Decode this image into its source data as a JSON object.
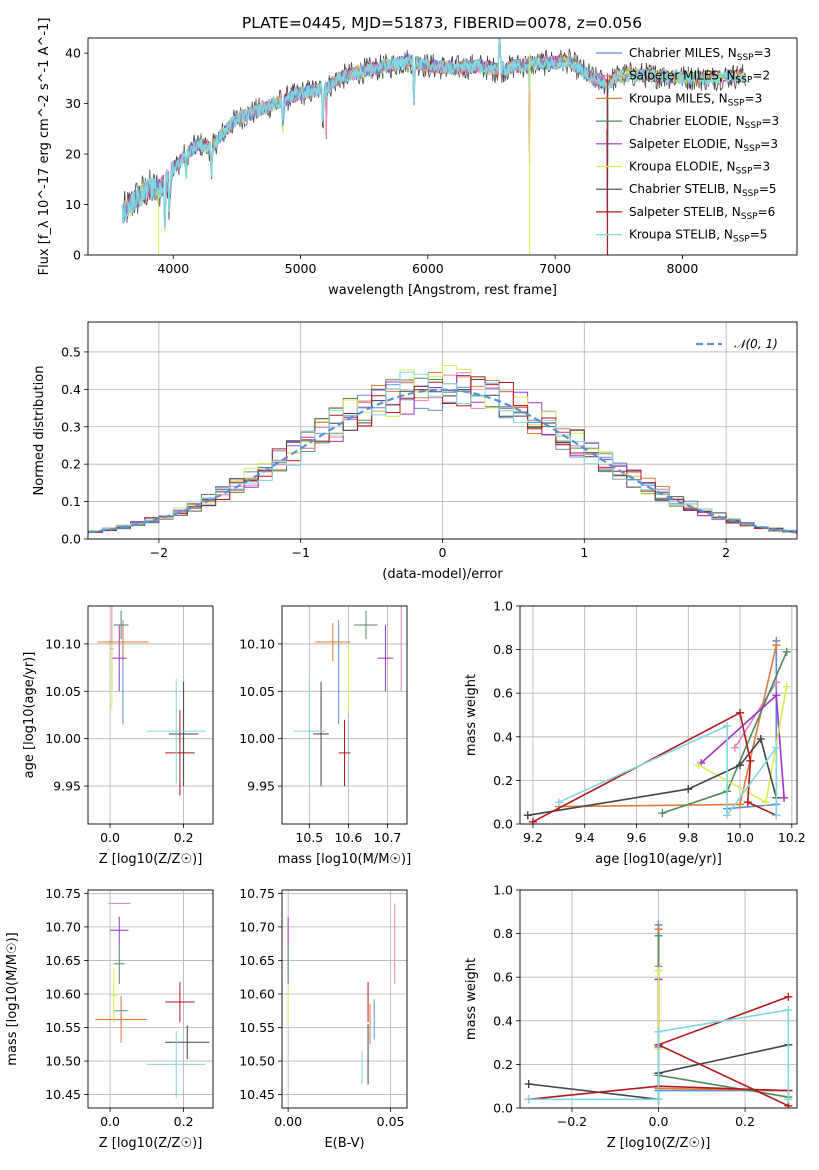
{
  "figure": {
    "title": "PLATE=0445, MJD=51873, FIBERID=0078, z=0.056"
  },
  "series_colors": {
    "Chabrier MILES": "#5b8fd6",
    "Salpeter MILES": "#e87fbf",
    "Kroupa MILES": "#e07b39",
    "Chabrier ELODIE": "#4f8a5b",
    "Salpeter ELODIE": "#9b35c7",
    "Kroupa ELODIE": "#d9ec58",
    "Chabrier STELIB": "#444444",
    "Salpeter STELIB": "#b1181c",
    "Kroupa STELIB": "#7fd8df"
  },
  "legend": [
    {
      "model": "Chabrier MILES",
      "nssp": "3"
    },
    {
      "model": "Salpeter MILES",
      "nssp": "2"
    },
    {
      "model": "Kroupa MILES",
      "nssp": "3"
    },
    {
      "model": "Chabrier ELODIE",
      "nssp": "3"
    },
    {
      "model": "Salpeter ELODIE",
      "nssp": "3"
    },
    {
      "model": "Kroupa ELODIE",
      "nssp": "3"
    },
    {
      "model": "Chabrier STELIB",
      "nssp": "5"
    },
    {
      "model": "Salpeter STELIB",
      "nssp": "6"
    },
    {
      "model": "Kroupa STELIB",
      "nssp": "5"
    }
  ],
  "chart_data": [
    {
      "id": "spectrum",
      "type": "line",
      "xlabel": "wavelength [Angstrom, rest frame]",
      "ylabel": "Flux [f_λ 10^-17 erg cm^-2 s^-1 A^-1]",
      "xlim": [
        3330,
        8900
      ],
      "ylim": [
        0,
        43
      ],
      "xticks": [
        4000,
        5000,
        6000,
        7000,
        8000
      ],
      "yticks": [
        0,
        10,
        20,
        30,
        40
      ],
      "grid": false,
      "legend_position": "right",
      "continuum": [
        [
          3600,
          8
        ],
        [
          3700,
          11
        ],
        [
          3800,
          13
        ],
        [
          3900,
          13
        ],
        [
          3950,
          15
        ],
        [
          4000,
          17
        ],
        [
          4100,
          20
        ],
        [
          4200,
          22
        ],
        [
          4300,
          21
        ],
        [
          4350,
          23
        ],
        [
          4500,
          27
        ],
        [
          4700,
          29
        ],
        [
          4900,
          31
        ],
        [
          5000,
          32
        ],
        [
          5200,
          33
        ],
        [
          5300,
          35
        ],
        [
          5500,
          36.5
        ],
        [
          5700,
          37.5
        ],
        [
          5850,
          38.5
        ],
        [
          6000,
          37.5
        ],
        [
          6200,
          37
        ],
        [
          6400,
          37.5
        ],
        [
          6560,
          36.5
        ],
        [
          6700,
          37.5
        ],
        [
          6900,
          38
        ],
        [
          7100,
          38.5
        ],
        [
          7300,
          35
        ],
        [
          7400,
          34
        ],
        [
          7500,
          35.5
        ],
        [
          7600,
          35.8
        ],
        [
          7800,
          35.5
        ],
        [
          8000,
          35.2
        ],
        [
          8200,
          35
        ],
        [
          8400,
          35.5
        ],
        [
          8500,
          35.3
        ]
      ],
      "features": [
        {
          "x": 3934,
          "depth": 10
        },
        {
          "x": 3969,
          "depth": 8
        },
        {
          "x": 4101,
          "depth": 5
        },
        {
          "x": 4300,
          "depth": 6
        },
        {
          "x": 4861,
          "depth": 6
        },
        {
          "x": 5175,
          "depth": 8
        },
        {
          "x": 5200,
          "depth": 20
        },
        {
          "x": 5890,
          "depth": 9
        },
        {
          "x": 6563,
          "depth": -9
        },
        {
          "x": 6800,
          "depth": 38
        },
        {
          "x": 7410,
          "depth": 34
        }
      ]
    },
    {
      "id": "residual_histogram",
      "type": "histogram",
      "xlabel": "(data-model)/error",
      "ylabel": "Normed distribution",
      "xlim": [
        -2.5,
        2.5
      ],
      "ylim": [
        0,
        0.58
      ],
      "xticks": [
        -2,
        -1,
        0,
        1,
        2
      ],
      "yticks": [
        0.0,
        0.1,
        0.2,
        0.3,
        0.4,
        0.5
      ],
      "grid": true,
      "reference_curve": "𝒩(0, 1)",
      "reference_color": "#5b8fd6",
      "bin_width": 0.1,
      "legend_position": "top-right"
    },
    {
      "id": "age_vs_Z",
      "type": "errorbar",
      "xlabel": "Z [log10(Z/Z☉)]",
      "ylabel": "age [log10(age/yr)]",
      "xlim": [
        -0.06,
        0.28
      ],
      "ylim": [
        9.91,
        10.14
      ],
      "xticks": [
        0.0,
        0.2
      ],
      "yticks": [
        9.95,
        10.0,
        10.05,
        10.1
      ],
      "grid": true,
      "points": [
        {
          "model": "Chabrier MILES",
          "x": 0.035,
          "xerr": 0.0,
          "y": 10.07,
          "yerr": 0.055
        },
        {
          "model": "Salpeter MILES",
          "x": 0.005,
          "xerr": 0.005,
          "y": 10.095,
          "yerr": 0.045
        },
        {
          "model": "Kroupa MILES",
          "x": 0.035,
          "xerr": 0.07,
          "y": 10.102,
          "yerr": 0.02
        },
        {
          "model": "Chabrier ELODIE",
          "x": 0.03,
          "xerr": 0.02,
          "y": 10.12,
          "yerr": 0.015
        },
        {
          "model": "Salpeter ELODIE",
          "x": 0.025,
          "xerr": 0.02,
          "y": 10.085,
          "yerr": 0.035
        },
        {
          "model": "Kroupa ELODIE",
          "x": 0.005,
          "xerr": 0.005,
          "y": 10.065,
          "yerr": 0.035
        },
        {
          "model": "Chabrier STELIB",
          "x": 0.2,
          "xerr": 0.04,
          "y": 10.005,
          "yerr": 0.055
        },
        {
          "model": "Salpeter STELIB",
          "x": 0.19,
          "xerr": 0.04,
          "y": 9.985,
          "yerr": 0.045
        },
        {
          "model": "Kroupa STELIB",
          "x": 0.18,
          "xerr": 0.08,
          "y": 10.008,
          "yerr": 0.055
        }
      ]
    },
    {
      "id": "age_vs_mass",
      "type": "errorbar",
      "xlabel": "mass [log10(M/M☉)]",
      "ylabel": "",
      "xlim": [
        10.43,
        10.75
      ],
      "ylim": [
        9.91,
        10.14
      ],
      "xticks": [
        10.5,
        10.6,
        10.7
      ],
      "yticks": [
        9.95,
        10.0,
        10.05,
        10.1
      ],
      "grid": true,
      "points": [
        {
          "model": "Chabrier MILES",
          "x": 10.575,
          "xerr": 0.0,
          "y": 10.07,
          "yerr": 0.055
        },
        {
          "model": "Salpeter MILES",
          "x": 10.735,
          "xerr": 0.0,
          "y": 10.095,
          "yerr": 0.045
        },
        {
          "model": "Kroupa MILES",
          "x": 10.56,
          "xerr": 0.045,
          "y": 10.102,
          "yerr": 0.02
        },
        {
          "model": "Chabrier ELODIE",
          "x": 10.645,
          "xerr": 0.03,
          "y": 10.12,
          "yerr": 0.015
        },
        {
          "model": "Salpeter ELODIE",
          "x": 10.695,
          "xerr": 0.02,
          "y": 10.085,
          "yerr": 0.035
        },
        {
          "model": "Kroupa ELODIE",
          "x": 10.6,
          "xerr": 0.0,
          "y": 10.065,
          "yerr": 0.035
        },
        {
          "model": "Chabrier STELIB",
          "x": 10.53,
          "xerr": 0.02,
          "y": 10.005,
          "yerr": 0.055
        },
        {
          "model": "Salpeter STELIB",
          "x": 10.59,
          "xerr": 0.015,
          "y": 9.985,
          "yerr": 0.035
        },
        {
          "model": "Kroupa STELIB",
          "x": 10.5,
          "xerr": 0.04,
          "y": 10.008,
          "yerr": 0.055
        }
      ]
    },
    {
      "id": "mass_weight_vs_age",
      "type": "line",
      "xlabel": "age [log10(age/yr)]",
      "ylabel": "mass weight",
      "xlim": [
        9.15,
        10.22
      ],
      "ylim": [
        0,
        1.0
      ],
      "xticks": [
        9.2,
        9.4,
        9.6,
        9.8,
        10.0,
        10.2
      ],
      "yticks": [
        0.0,
        0.2,
        0.4,
        0.6,
        0.8,
        1.0
      ],
      "grid": true,
      "series": [
        {
          "model": "Chabrier MILES",
          "points": [
            [
              9.95,
              0.07
            ],
            [
              10.14,
              0.09
            ],
            [
              10.14,
              0.84
            ]
          ]
        },
        {
          "model": "Salpeter MILES",
          "points": [
            [
              9.98,
              0.35
            ],
            [
              10.14,
              0.65
            ]
          ]
        },
        {
          "model": "Kroupa MILES",
          "points": [
            [
              9.3,
              0.08
            ],
            [
              10.0,
              0.09
            ],
            [
              10.14,
              0.82
            ]
          ]
        },
        {
          "model": "Chabrier ELODIE",
          "points": [
            [
              9.7,
              0.05
            ],
            [
              9.95,
              0.15
            ],
            [
              10.18,
              0.79
            ]
          ]
        },
        {
          "model": "Salpeter ELODIE",
          "points": [
            [
              9.85,
              0.28
            ],
            [
              10.14,
              0.59
            ],
            [
              10.17,
              0.12
            ]
          ]
        },
        {
          "model": "Kroupa ELODIE",
          "points": [
            [
              9.84,
              0.27
            ],
            [
              10.1,
              0.1
            ],
            [
              10.18,
              0.63
            ]
          ]
        },
        {
          "model": "Chabrier STELIB",
          "points": [
            [
              9.18,
              0.04
            ],
            [
              9.8,
              0.16
            ],
            [
              10.0,
              0.27
            ],
            [
              10.08,
              0.39
            ],
            [
              10.14,
              0.12
            ]
          ]
        },
        {
          "model": "Salpeter STELIB",
          "points": [
            [
              9.2,
              0.01
            ],
            [
              10.0,
              0.51
            ],
            [
              10.04,
              0.29
            ],
            [
              10.03,
              0.1
            ],
            [
              10.14,
              0.04
            ]
          ]
        },
        {
          "model": "Kroupa STELIB",
          "points": [
            [
              9.3,
              0.1
            ],
            [
              9.95,
              0.45
            ],
            [
              9.95,
              0.04
            ],
            [
              10.14,
              0.35
            ],
            [
              10.14,
              0.04
            ]
          ]
        }
      ]
    },
    {
      "id": "mass_vs_Z",
      "type": "errorbar",
      "xlabel": "Z [log10(Z/Z☉)]",
      "ylabel": "mass [log10(M/M☉)]",
      "xlim": [
        -0.06,
        0.28
      ],
      "ylim": [
        10.43,
        10.755
      ],
      "xticks": [
        0.0,
        0.2
      ],
      "yticks": [
        10.45,
        10.5,
        10.55,
        10.6,
        10.65,
        10.7,
        10.75
      ],
      "grid": true,
      "points": [
        {
          "model": "Chabrier MILES",
          "x": 0.03,
          "xerr": 0.02,
          "y": 10.575,
          "yerr": 0.02
        },
        {
          "model": "Salpeter MILES",
          "x": 0.025,
          "xerr": 0.03,
          "y": 10.735,
          "yerr": 0.0
        },
        {
          "model": "Kroupa MILES",
          "x": 0.03,
          "xerr": 0.07,
          "y": 10.562,
          "yerr": 0.035
        },
        {
          "model": "Chabrier ELODIE",
          "x": 0.025,
          "xerr": 0.015,
          "y": 10.645,
          "yerr": 0.03
        },
        {
          "model": "Salpeter ELODIE",
          "x": 0.025,
          "xerr": 0.025,
          "y": 10.695,
          "yerr": 0.02
        },
        {
          "model": "Kroupa ELODIE",
          "x": 0.01,
          "xerr": 0.01,
          "y": 10.598,
          "yerr": 0.04
        },
        {
          "model": "Chabrier STELIB",
          "x": 0.21,
          "xerr": 0.06,
          "y": 10.528,
          "yerr": 0.025
        },
        {
          "model": "Salpeter STELIB",
          "x": 0.19,
          "xerr": 0.04,
          "y": 10.588,
          "yerr": 0.03
        },
        {
          "model": "Kroupa STELIB",
          "x": 0.18,
          "xerr": 0.08,
          "y": 10.495,
          "yerr": 0.05
        }
      ]
    },
    {
      "id": "mass_vs_EBV",
      "type": "errorbar",
      "xlabel": "E(B-V)",
      "ylabel": "",
      "xlim": [
        -0.003,
        0.058
      ],
      "ylim": [
        10.43,
        10.755
      ],
      "xticks": [
        0.0,
        0.05
      ],
      "yticks": [
        10.45,
        10.5,
        10.55,
        10.6,
        10.65,
        10.7,
        10.75
      ],
      "grid": true,
      "points": [
        {
          "model": "Chabrier MILES",
          "x": 0.042,
          "xerr": 0.0,
          "y": 10.562,
          "yerr": 0.03
        },
        {
          "model": "Salpeter MILES",
          "x": 0.052,
          "xerr": 0.0,
          "y": 10.675,
          "yerr": 0.06
        },
        {
          "model": "Kroupa MILES",
          "x": 0.04,
          "xerr": 0.0,
          "y": 10.555,
          "yerr": 0.03
        },
        {
          "model": "Chabrier ELODIE",
          "x": 0.0,
          "xerr": 0.0,
          "y": 10.645,
          "yerr": 0.03
        },
        {
          "model": "Salpeter ELODIE",
          "x": 0.0,
          "xerr": 0.0,
          "y": 10.695,
          "yerr": 0.02
        },
        {
          "model": "Kroupa ELODIE",
          "x": 0.0,
          "xerr": 0.0,
          "y": 10.58,
          "yerr": 0.03
        },
        {
          "model": "Chabrier STELIB",
          "x": 0.039,
          "xerr": 0.0,
          "y": 10.51,
          "yerr": 0.045
        },
        {
          "model": "Salpeter STELIB",
          "x": 0.039,
          "xerr": 0.0,
          "y": 10.588,
          "yerr": 0.03
        },
        {
          "model": "Kroupa STELIB",
          "x": 0.036,
          "xerr": 0.0,
          "y": 10.49,
          "yerr": 0.025
        }
      ]
    },
    {
      "id": "mass_weight_vs_Z",
      "type": "line",
      "xlabel": "Z [log10(Z/Z☉)]",
      "ylabel": "mass weight",
      "xlim": [
        -0.32,
        0.32
      ],
      "ylim": [
        0,
        1.0
      ],
      "xticks": [
        -0.2,
        0.0,
        0.2
      ],
      "yticks": [
        0.0,
        0.2,
        0.4,
        0.6,
        0.8,
        1.0
      ],
      "grid": true,
      "series": [
        {
          "model": "Chabrier MILES",
          "points": [
            [
              0.0,
              0.84
            ],
            [
              0.0,
              0.08
            ],
            [
              0.3,
              0.08
            ]
          ]
        },
        {
          "model": "Salpeter MILES",
          "points": [
            [
              0.0,
              0.35
            ],
            [
              0.0,
              0.65
            ]
          ]
        },
        {
          "model": "Kroupa MILES",
          "points": [
            [
              0.0,
              0.82
            ],
            [
              0.0,
              0.09
            ],
            [
              0.3,
              0.08
            ]
          ]
        },
        {
          "model": "Chabrier ELODIE",
          "points": [
            [
              0.0,
              0.79
            ],
            [
              0.0,
              0.15
            ],
            [
              0.3,
              0.05
            ]
          ]
        },
        {
          "model": "Salpeter ELODIE",
          "points": [
            [
              0.0,
              0.59
            ],
            [
              0.0,
              0.28
            ]
          ]
        },
        {
          "model": "Kroupa ELODIE",
          "points": [
            [
              0.0,
              0.63
            ],
            [
              0.0,
              0.1
            ],
            [
              0.0,
              0.27
            ]
          ]
        },
        {
          "model": "Chabrier STELIB",
          "points": [
            [
              -0.3,
              0.11
            ],
            [
              0.0,
              0.04
            ],
            [
              0.0,
              0.16
            ],
            [
              0.3,
              0.29
            ]
          ]
        },
        {
          "model": "Salpeter STELIB",
          "points": [
            [
              -0.3,
              0.04
            ],
            [
              0.0,
              0.1
            ],
            [
              0.3,
              0.08
            ],
            [
              0.3,
              0.01
            ],
            [
              0.0,
              0.29
            ],
            [
              0.3,
              0.51
            ]
          ]
        },
        {
          "model": "Kroupa STELIB",
          "points": [
            [
              -0.3,
              0.04
            ],
            [
              0.0,
              0.04
            ],
            [
              0.0,
              0.35
            ],
            [
              0.3,
              0.45
            ],
            [
              0.3,
              0.04
            ]
          ]
        }
      ]
    }
  ]
}
